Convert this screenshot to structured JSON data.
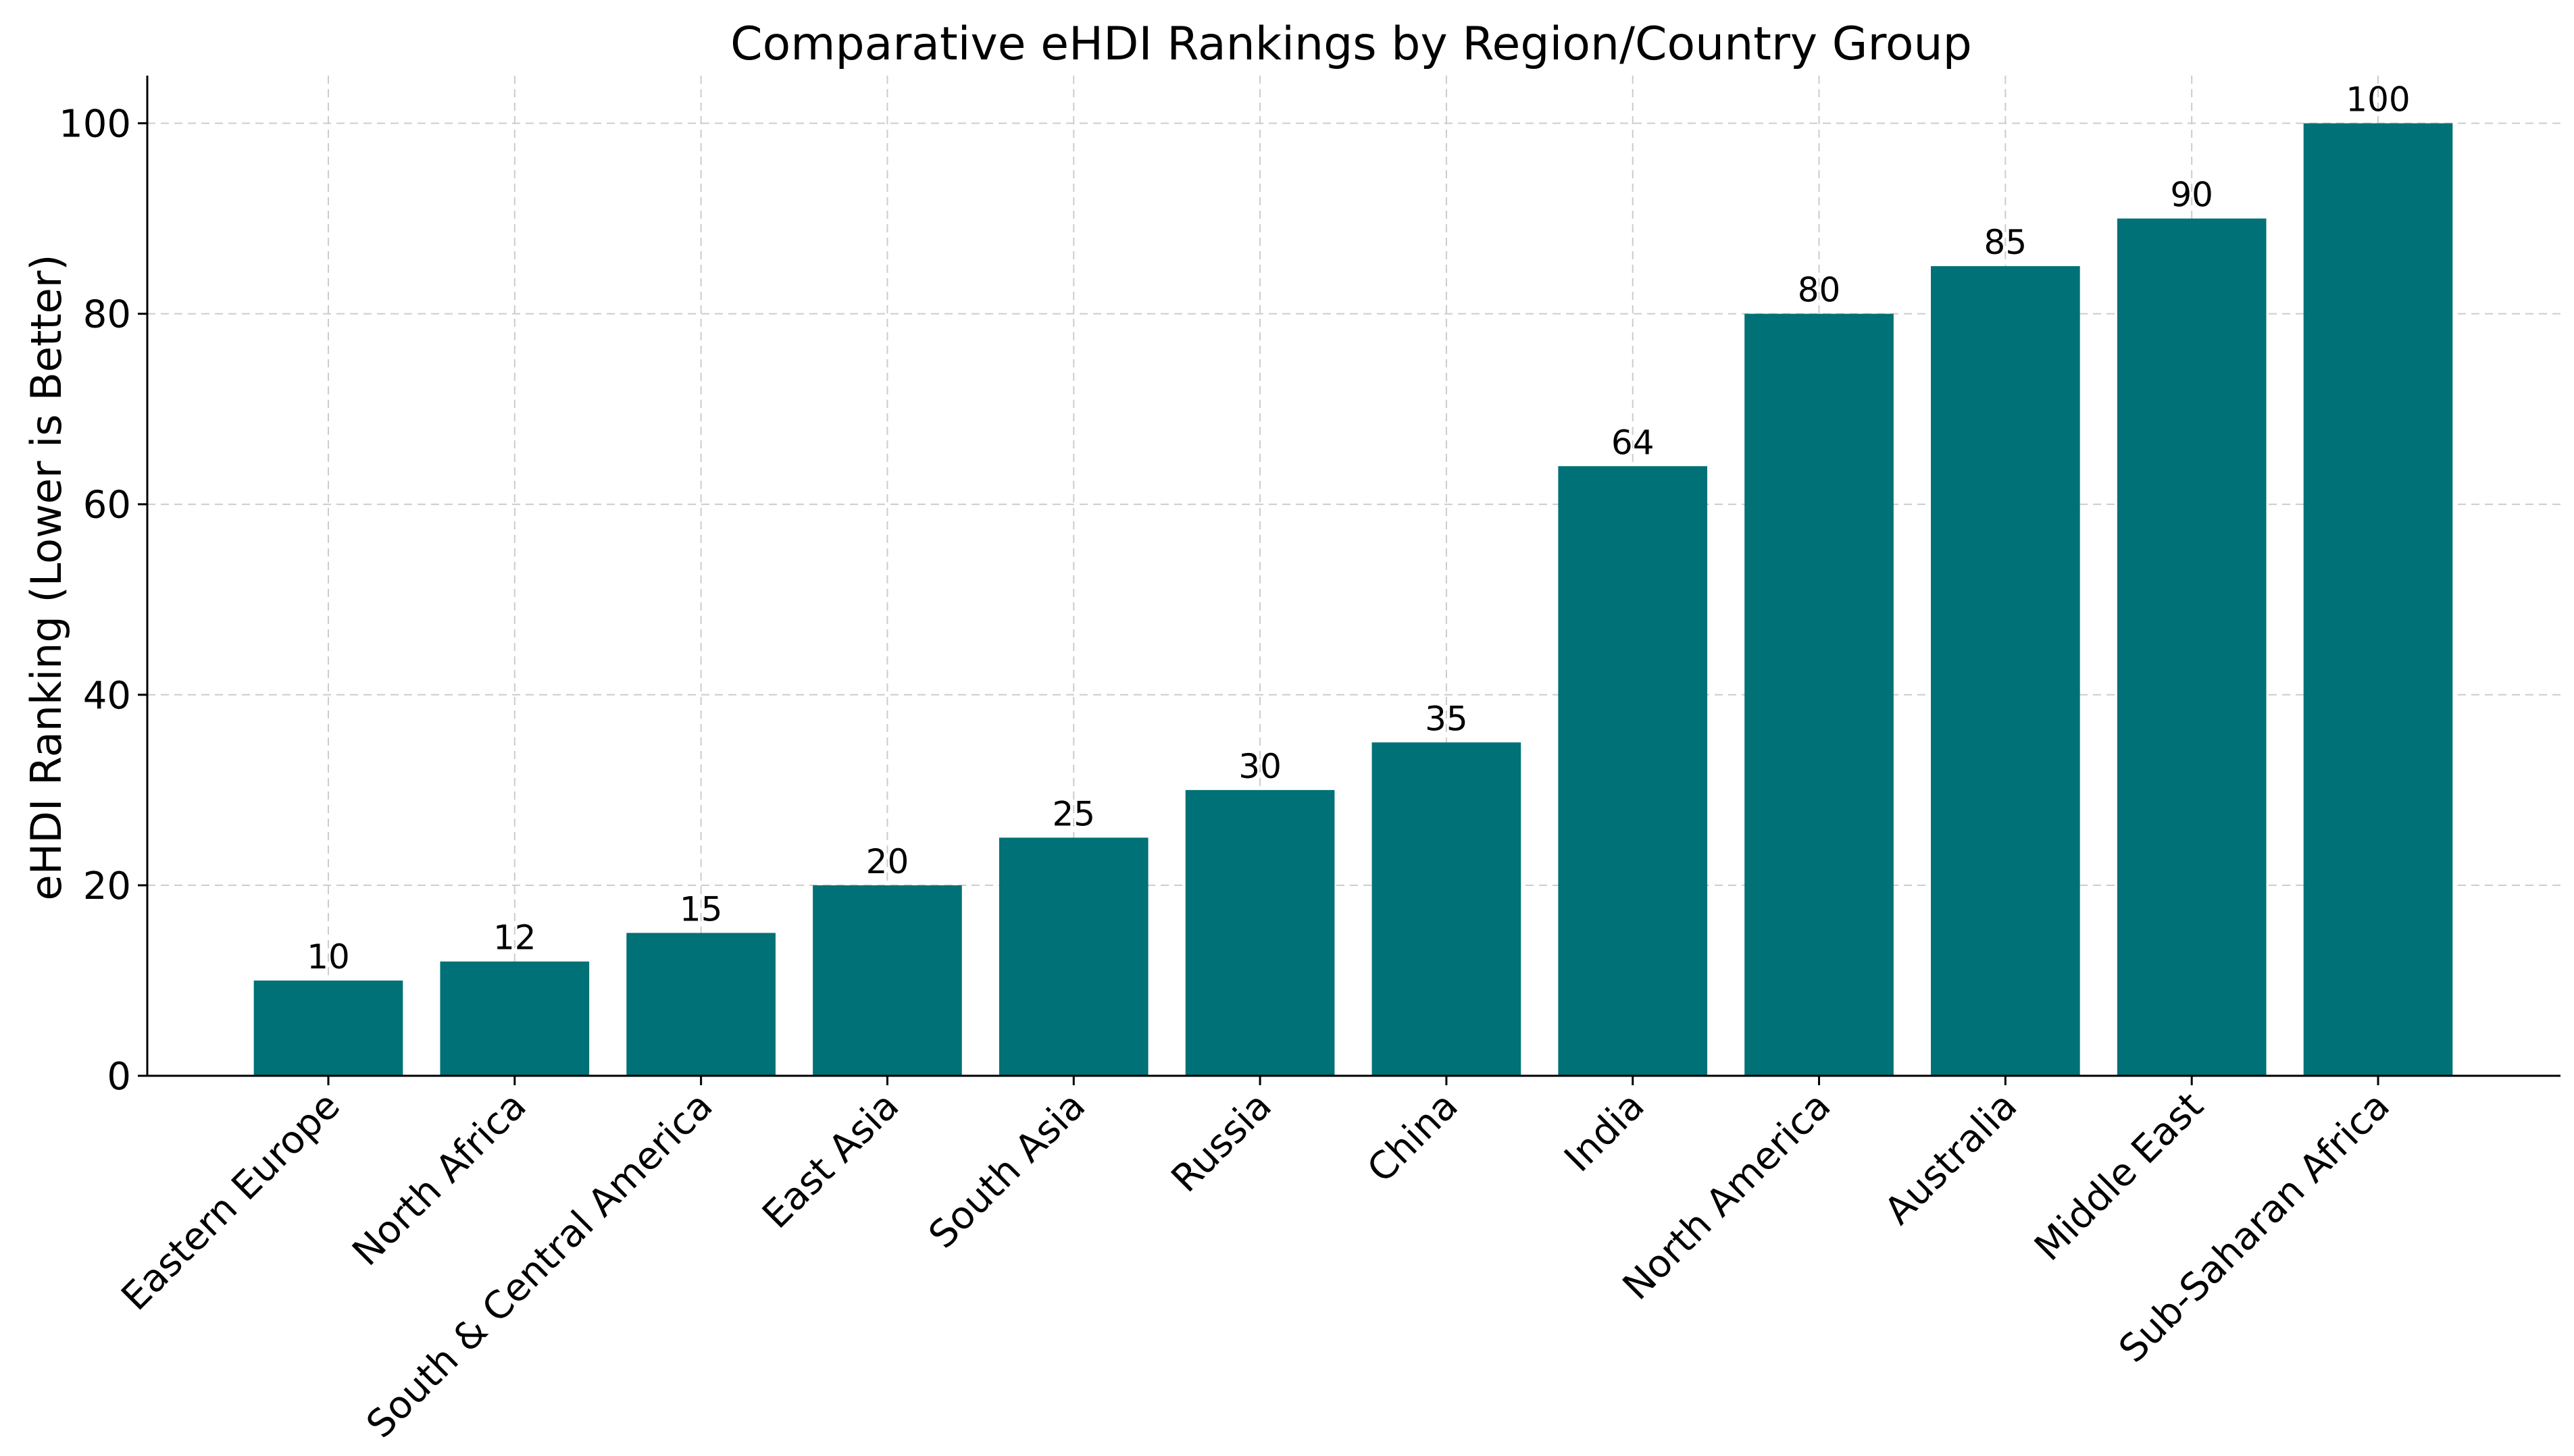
{
  "chart_data": {
    "type": "bar",
    "title": "Comparative eHDI Rankings by Region/Country Group",
    "xlabel": "",
    "ylabel": "eHDI Ranking (Lower is Better)",
    "categories": [
      "Eastern Europe",
      "North Africa",
      "South & Central America",
      "East Asia",
      "South Asia",
      "Russia",
      "China",
      "India",
      "North America",
      "Australia",
      "Middle East",
      "Sub-Saharan Africa"
    ],
    "values": [
      10,
      12,
      15,
      20,
      25,
      30,
      35,
      64,
      80,
      85,
      90,
      100
    ],
    "value_labels": [
      "10",
      "12",
      "15",
      "20",
      "25",
      "30",
      "35",
      "64",
      "80",
      "85",
      "90",
      "100"
    ],
    "yticks": [
      0,
      20,
      40,
      60,
      80,
      100
    ],
    "ytick_labels": [
      "0",
      "20",
      "40",
      "60",
      "80",
      "100"
    ],
    "ylim": [
      0,
      105
    ],
    "grid": true,
    "bar_color": "#007176"
  }
}
